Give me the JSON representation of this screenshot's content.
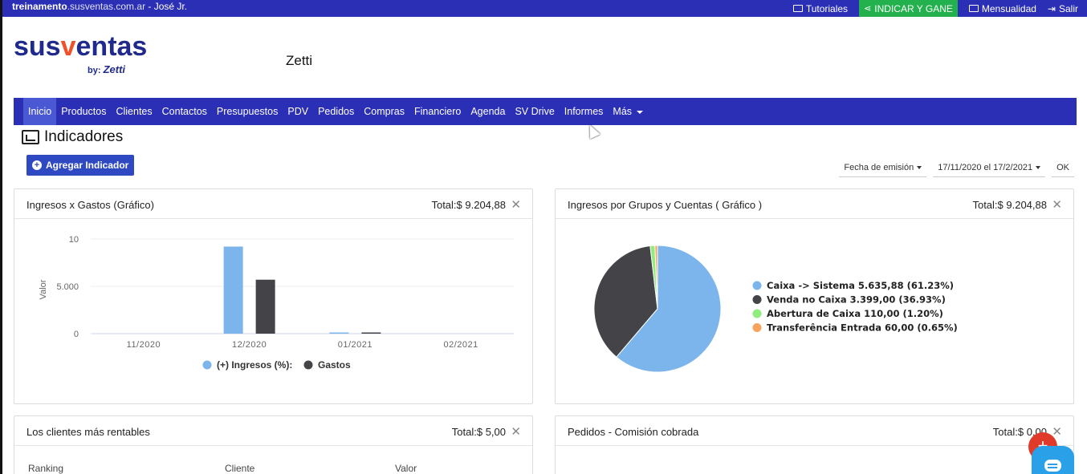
{
  "topbar": {
    "domain_bold": "treinamento",
    "domain_rest": ".susventas.com.ar",
    "user": " - José Jr.",
    "tutoriales": "Tutoriales",
    "indicar": "INDICAR Y GANE",
    "mensualidad": "Mensualidad",
    "salir": "Salir"
  },
  "header": {
    "logo_pre": "sus",
    "logo_v": "v",
    "logo_post": "entas",
    "logo_by": "by:",
    "logo_zetti": "Zetti",
    "company": "Zetti"
  },
  "nav": {
    "items": [
      "Inicio",
      "Productos",
      "Clientes",
      "Contactos",
      "Presupuestos",
      "PDV",
      "Pedidos",
      "Compras",
      "Financiero",
      "Agenda",
      "SV Drive",
      "Informes",
      "Más"
    ],
    "active": "Inicio"
  },
  "page": {
    "title": "Indicadores",
    "add_button": "Agregar Indicador"
  },
  "filters": {
    "date_type": "Fecha de emisión",
    "date_range": "17/11/2020 el 17/2/2021",
    "ok": "OK"
  },
  "cards": {
    "ingresos_gastos": {
      "title": "Ingresos x Gastos (Gráfico)",
      "total": "Total:$ 9.204,88"
    },
    "grupos_cuentas": {
      "title": "Ingresos por Grupos y Cuentas ( Gráfico )",
      "total": "Total:$ 9.204,88"
    },
    "clientes": {
      "title": "Los clientes más rentables",
      "total": "Total:$ 5,00",
      "columns": [
        "Ranking",
        "Cliente",
        "Valor"
      ]
    },
    "pedidos": {
      "title": "Pedidos - Comisión cobrada",
      "total": "Total:$ 0,00"
    }
  },
  "colors": {
    "brand_blue": "#2b2fb5",
    "series_ingresos": "#7cb5ec",
    "series_gastos": "#434348",
    "slice_green": "#90ed7d",
    "slice_orange": "#f7a35c",
    "accent_green": "#22b14c",
    "fab_red": "#e03a2a",
    "chat_blue": "#2aa0e8"
  },
  "chart_data": [
    {
      "type": "bar",
      "categories": [
        "11/2020",
        "12/2020",
        "01/2021",
        "02/2021"
      ],
      "series": [
        {
          "name": "(+) Ingresos (%):",
          "values": [
            0,
            9.2,
            0.06,
            0
          ]
        },
        {
          "name": "Gastos",
          "values": [
            0,
            5.7,
            0.05,
            0
          ]
        }
      ],
      "ylabel": "Valor",
      "yticks": [
        "0",
        "5.000",
        "10"
      ],
      "ylim": [
        0,
        10
      ],
      "legend": "bottom",
      "grid": true
    },
    {
      "type": "pie",
      "slices": [
        {
          "label": "Caixa -> Sistema 5.635,88 (61.23%)",
          "value": 61.23
        },
        {
          "label": "Venda no Caixa 3.399,00 (36.93%)",
          "value": 36.93
        },
        {
          "label": "Abertura de Caixa 110,00 (1.20%)",
          "value": 1.2
        },
        {
          "label": "Transferência Entrada 60,00 (0.65%)",
          "value": 0.65
        }
      ],
      "legend": "right"
    }
  ]
}
